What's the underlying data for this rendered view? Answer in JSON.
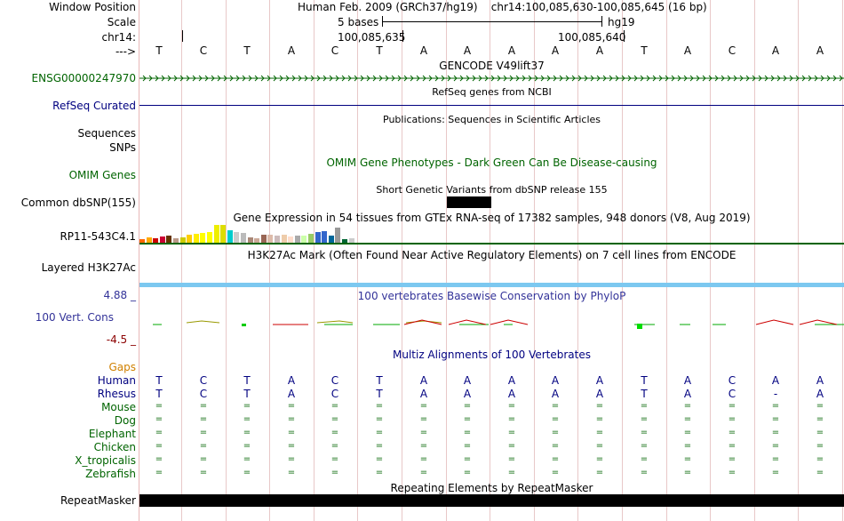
{
  "header": {
    "window_position_label": "Window Position",
    "scale_label": "Scale",
    "chrom_label": "chr14:",
    "strand_label": "--->",
    "assembly": "Human Feb. 2009 (GRCh37/hg19)",
    "position": "chr14:100,085,630-100,085,645 (16 bp)",
    "scale_text": "5 bases",
    "scale_db": "hg19",
    "coord1": "100,085,635",
    "coord2": "100,085,640"
  },
  "sequence": [
    "T",
    "C",
    "T",
    "A",
    "C",
    "T",
    "A",
    "A",
    "A",
    "A",
    "A",
    "T",
    "A",
    "C",
    "A",
    "A"
  ],
  "tracks": {
    "gencode": {
      "title": "GENCODE V49lift37",
      "label": "ENSG00000247970",
      "color": "#006400"
    },
    "refseq": {
      "title": "RefSeq genes from NCBI",
      "label": "RefSeq Curated",
      "color": "#000080"
    },
    "publications": {
      "title": "Publications: Sequences in Scientific Articles",
      "label1": "Sequences",
      "label2": "SNPs"
    },
    "omim": {
      "title": "OMIM Gene Phenotypes - Dark Green Can Be Disease-causing",
      "label": "OMIM Genes",
      "color": "#006400"
    },
    "dbsnp": {
      "title": "Short Genetic Variants from dbSNP release 155",
      "label": "Common dbSNP(155)"
    },
    "gtex": {
      "title": "Gene Expression in 54 tissues from GTEx RNA-seq of 17382 samples, 948 donors (V8, Aug 2019)",
      "label": "RP11-543C4.1"
    },
    "h3k27ac": {
      "title": "H3K27Ac Mark (Often Found Near Active Regulatory Elements) on 7 cell lines from ENCODE",
      "label": "Layered H3K27Ac"
    },
    "phylop": {
      "title": "100 vertebrates Basewise Conservation by PhyloP",
      "label": "100 Vert. Cons",
      "max": "4.88 _",
      "min": "-4.5 _",
      "color": "#333399"
    },
    "multiz": {
      "title": "Multiz Alignments of 100 Vertebrates",
      "gaps_label": "Gaps",
      "gaps_color": "#d08000"
    },
    "repeatmasker": {
      "title": "Repeating Elements by RepeatMasker",
      "label": "RepeatMasker"
    }
  },
  "species": [
    {
      "name": "Human",
      "seq": [
        "T",
        "C",
        "T",
        "A",
        "C",
        "T",
        "A",
        "A",
        "A",
        "A",
        "A",
        "T",
        "A",
        "C",
        "A",
        "A"
      ]
    },
    {
      "name": "Rhesus",
      "seq": [
        "T",
        "C",
        "T",
        "A",
        "C",
        "T",
        "A",
        "A",
        "A",
        "A",
        "A",
        "T",
        "A",
        "C",
        "-",
        "A"
      ]
    },
    {
      "name": "Mouse",
      "seq": [
        "=",
        "=",
        "=",
        "=",
        "=",
        "=",
        "=",
        "=",
        "=",
        "=",
        "=",
        "=",
        "=",
        "=",
        "=",
        "="
      ]
    },
    {
      "name": "Dog",
      "seq": [
        "=",
        "=",
        "=",
        "=",
        "=",
        "=",
        "=",
        "=",
        "=",
        "=",
        "=",
        "=",
        "=",
        "=",
        "=",
        "="
      ]
    },
    {
      "name": "Elephant",
      "seq": [
        "=",
        "=",
        "=",
        "=",
        "=",
        "=",
        "=",
        "=",
        "=",
        "=",
        "=",
        "=",
        "=",
        "=",
        "=",
        "="
      ]
    },
    {
      "name": "Chicken",
      "seq": [
        "=",
        "=",
        "=",
        "=",
        "=",
        "=",
        "=",
        "=",
        "=",
        "=",
        "=",
        "=",
        "=",
        "=",
        "=",
        "="
      ]
    },
    {
      "name": "X_tropicalis",
      "seq": [
        "=",
        "=",
        "=",
        "=",
        "=",
        "=",
        "=",
        "=",
        "=",
        "=",
        "=",
        "=",
        "=",
        "=",
        "=",
        "="
      ]
    },
    {
      "name": "Zebrafish",
      "seq": [
        "=",
        "=",
        "=",
        "=",
        "=",
        "=",
        "=",
        "=",
        "=",
        "=",
        "=",
        "=",
        "=",
        "=",
        "=",
        "="
      ]
    }
  ],
  "gtex_bar_colors": [
    "#ff6600",
    "#ffaa00",
    "#cc0000",
    "#cc0033",
    "#663300",
    "#bb9988",
    "#cccc00",
    "#ffcc00",
    "#ffee00",
    "#ffff00",
    "#ffff00",
    "#eeee00",
    "#dddd00",
    "#00cccc",
    "#cccccc",
    "#bbbbbb",
    "#aa8877",
    "#ccaa99",
    "#996655",
    "#ddbbaa",
    "#ccbbbb",
    "#eeccaa",
    "#ffddcc",
    "#aaaaaa",
    "#ccffaa",
    "#99cc66",
    "#3366cc",
    "#3366cc",
    "#006699",
    "#999999",
    "#006633",
    "#cccccc"
  ]
}
